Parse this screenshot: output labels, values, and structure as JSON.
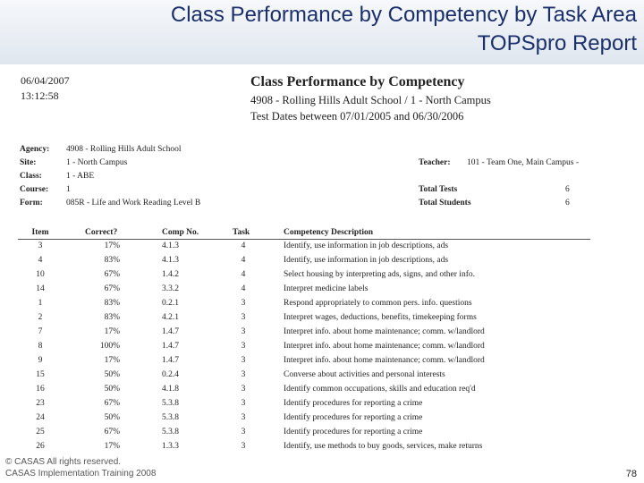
{
  "slide": {
    "title_line1": "Class Performance by Competency by Task Area",
    "title_line2": "TOPSpro Report"
  },
  "report": {
    "date": "06/04/2007",
    "time": "13:12:58",
    "title": "Class Performance by Competency",
    "subtitle": "4908 - Rolling Hills Adult School / 1 - North Campus",
    "date_range": "Test Dates between 07/01/2005 and 06/30/2006",
    "info_left": [
      {
        "label": "Agency:",
        "value": "4908 - Rolling Hills Adult School"
      },
      {
        "label": "Site:",
        "value": "1 - North Campus"
      },
      {
        "label": "Class:",
        "value": "1 - ABE"
      },
      {
        "label": "Course:",
        "value": "1"
      },
      {
        "label": "Form:",
        "value": "085R - Life and Work Reading Level B"
      }
    ],
    "teacher": {
      "label": "Teacher:",
      "value": "101 - Team One, Main Campus -"
    },
    "total_tests": {
      "label": "Total Tests",
      "value": "6"
    },
    "total_students": {
      "label": "Total Students",
      "value": "6"
    },
    "columns": {
      "item": "Item",
      "correct": "Correct?",
      "comp_no": "Comp No.",
      "task": "Task",
      "description": "Competency Description"
    },
    "rows": [
      {
        "item": "3",
        "correct": "17%",
        "comp": "4.1.3",
        "task": "4",
        "desc": "Identify, use information in job descriptions, ads"
      },
      {
        "item": "4",
        "correct": "83%",
        "comp": "4.1.3",
        "task": "4",
        "desc": "Identify, use information in job descriptions, ads"
      },
      {
        "item": "10",
        "correct": "67%",
        "comp": "1.4.2",
        "task": "4",
        "desc": "Select housing by interpreting ads, signs, and other info."
      },
      {
        "item": "14",
        "correct": "67%",
        "comp": "3.3.2",
        "task": "4",
        "desc": "Interpret medicine labels"
      },
      {
        "item": "1",
        "correct": "83%",
        "comp": "0.2.1",
        "task": "3",
        "desc": "Respond appropriately to common pers. info. questions"
      },
      {
        "item": "2",
        "correct": "83%",
        "comp": "4.2.1",
        "task": "3",
        "desc": "Interpret wages, deductions, benefits, timekeeping forms"
      },
      {
        "item": "7",
        "correct": "17%",
        "comp": "1.4.7",
        "task": "3",
        "desc": "Interpret info. about home maintenance; comm. w/landlord"
      },
      {
        "item": "8",
        "correct": "100%",
        "comp": "1.4.7",
        "task": "3",
        "desc": "Interpret info. about home maintenance; comm. w/landlord"
      },
      {
        "item": "9",
        "correct": "17%",
        "comp": "1.4.7",
        "task": "3",
        "desc": "Interpret info. about home maintenance; comm. w/landlord"
      },
      {
        "item": "15",
        "correct": "50%",
        "comp": "0.2.4",
        "task": "3",
        "desc": "Converse about activities and personal interests"
      },
      {
        "item": "16",
        "correct": "50%",
        "comp": "4.1.8",
        "task": "3",
        "desc": "Identify common occupations, skills and education req'd"
      },
      {
        "item": "23",
        "correct": "67%",
        "comp": "5.3.8",
        "task": "3",
        "desc": "Identify procedures for reporting a crime"
      },
      {
        "item": "24",
        "correct": "50%",
        "comp": "5.3.8",
        "task": "3",
        "desc": "Identify procedures for reporting a crime"
      },
      {
        "item": "25",
        "correct": "67%",
        "comp": "5.3.8",
        "task": "3",
        "desc": "Identify procedures for reporting a crime"
      },
      {
        "item": "26",
        "correct": "17%",
        "comp": "1.3.3",
        "task": "3",
        "desc": "Identify, use methods to buy goods, services, make returns"
      }
    ]
  },
  "footer": {
    "line1": "© CASAS All rights reserved.",
    "line2": "CASAS Implementation Training 2008",
    "page_number": "78"
  }
}
